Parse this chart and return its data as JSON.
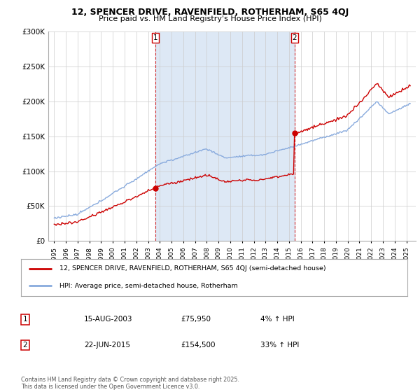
{
  "title": "12, SPENCER DRIVE, RAVENFIELD, ROTHERHAM, S65 4QJ",
  "subtitle": "Price paid vs. HM Land Registry's House Price Index (HPI)",
  "legend_line1": "12, SPENCER DRIVE, RAVENFIELD, ROTHERHAM, S65 4QJ (semi-detached house)",
  "legend_line2": "HPI: Average price, semi-detached house, Rotherham",
  "annotation1_label": "1",
  "annotation1_date": "15-AUG-2003",
  "annotation1_price": "£75,950",
  "annotation1_hpi": "4% ↑ HPI",
  "annotation2_label": "2",
  "annotation2_date": "22-JUN-2015",
  "annotation2_price": "£154,500",
  "annotation2_hpi": "33% ↑ HPI",
  "footer": "Contains HM Land Registry data © Crown copyright and database right 2025.\nThis data is licensed under the Open Government Licence v3.0.",
  "sale1_x": 2003.62,
  "sale1_y": 75950,
  "sale2_x": 2015.47,
  "sale2_y": 154500,
  "red_color": "#cc0000",
  "blue_color": "#88aadd",
  "shade_color": "#dde8f5",
  "vline_color": "#cc0000",
  "plot_bg": "#ffffff",
  "ylim": [
    0,
    300000
  ],
  "xlim_start": 1994.5,
  "xlim_end": 2025.8,
  "yticks": [
    0,
    50000,
    100000,
    150000,
    200000,
    250000,
    300000
  ],
  "xtick_years": [
    1995,
    1996,
    1997,
    1998,
    1999,
    2000,
    2001,
    2002,
    2003,
    2004,
    2005,
    2006,
    2007,
    2008,
    2009,
    2010,
    2011,
    2012,
    2013,
    2014,
    2015,
    2016,
    2017,
    2018,
    2019,
    2020,
    2021,
    2022,
    2023,
    2024,
    2025
  ]
}
